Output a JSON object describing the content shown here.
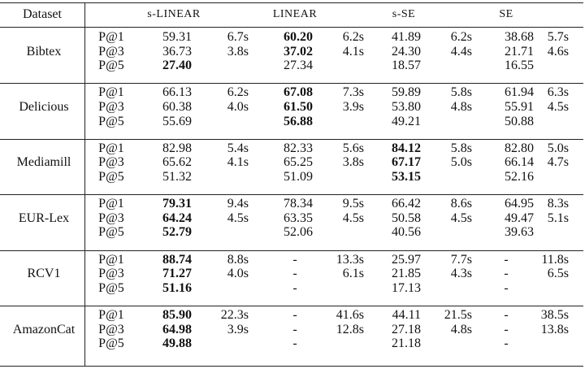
{
  "table": {
    "header": [
      "Dataset",
      "s-LINEAR",
      "LINEAR",
      "s-SE",
      "SE"
    ],
    "groups": [
      {
        "dataset": "Bibtex",
        "best_column": [
          3,
          3,
          1
        ],
        "rows": [
          [
            "P@1",
            "59.31",
            "6.7s",
            "60.20",
            "6.2s",
            "41.89",
            "6.2s",
            "38.68",
            "5.7s"
          ],
          [
            "P@3",
            "36.73",
            "3.8s",
            "37.02",
            "4.1s",
            "24.30",
            "4.4s",
            "21.71",
            "4.6s"
          ],
          [
            "P@5",
            "27.40",
            null,
            "27.34",
            null,
            "18.57",
            null,
            "16.55",
            null
          ]
        ]
      },
      {
        "dataset": "Delicious",
        "best_column": [
          3,
          3,
          3
        ],
        "rows": [
          [
            "P@1",
            "66.13",
            "6.2s",
            "67.08",
            "7.3s",
            "59.89",
            "5.8s",
            "61.94",
            "6.3s"
          ],
          [
            "P@3",
            "60.38",
            "4.0s",
            "61.50",
            "3.9s",
            "53.80",
            "4.8s",
            "55.91",
            "4.5s"
          ],
          [
            "P@5",
            "55.69",
            null,
            "56.88",
            null,
            "49.21",
            null,
            "50.88",
            null
          ]
        ]
      },
      {
        "dataset": "Mediamill",
        "best_column": [
          5,
          5,
          5
        ],
        "rows": [
          [
            "P@1",
            "82.98",
            "5.4s",
            "82.33",
            "5.6s",
            "84.12",
            "5.8s",
            "82.80",
            "5.0s"
          ],
          [
            "P@3",
            "65.62",
            "4.1s",
            "65.25",
            "3.8s",
            "67.17",
            "5.0s",
            "66.14",
            "4.7s"
          ],
          [
            "P@5",
            "51.32",
            null,
            "51.09",
            null,
            "53.15",
            null,
            "52.16",
            null
          ]
        ]
      },
      {
        "dataset": "EUR-Lex",
        "best_column": [
          1,
          1,
          1
        ],
        "rows": [
          [
            "P@1",
            "79.31",
            "9.4s",
            "78.34",
            "9.5s",
            "66.42",
            "8.6s",
            "64.95",
            "8.3s"
          ],
          [
            "P@3",
            "64.24",
            "4.5s",
            "63.35",
            "4.5s",
            "50.58",
            "4.5s",
            "49.47",
            "5.1s"
          ],
          [
            "P@5",
            "52.79",
            null,
            "52.06",
            null,
            "40.56",
            null,
            "39.63",
            null
          ]
        ]
      },
      {
        "dataset": "RCV1",
        "best_column": [
          1,
          1,
          1
        ],
        "rows": [
          [
            "P@1",
            "88.74",
            "8.8s",
            "-",
            "13.3s",
            "25.97",
            "7.7s",
            "-",
            "11.8s"
          ],
          [
            "P@3",
            "71.27",
            "4.0s",
            "-",
            "6.1s",
            "21.85",
            "4.3s",
            "-",
            "6.5s"
          ],
          [
            "P@5",
            "51.16",
            null,
            "-",
            null,
            "17.13",
            null,
            "-",
            null
          ]
        ]
      },
      {
        "dataset": "AmazonCat",
        "best_column": [
          1,
          1,
          1
        ],
        "rows": [
          [
            "P@1",
            "85.90",
            "22.3s",
            "-",
            "41.6s",
            "44.11",
            "21.5s",
            "-",
            "38.5s"
          ],
          [
            "P@3",
            "64.98",
            "3.9s",
            "-",
            "12.8s",
            "27.18",
            "4.8s",
            "-",
            "13.8s"
          ],
          [
            "P@5",
            "49.88",
            null,
            "-",
            null,
            "21.18",
            null,
            "-",
            null
          ]
        ]
      }
    ]
  }
}
